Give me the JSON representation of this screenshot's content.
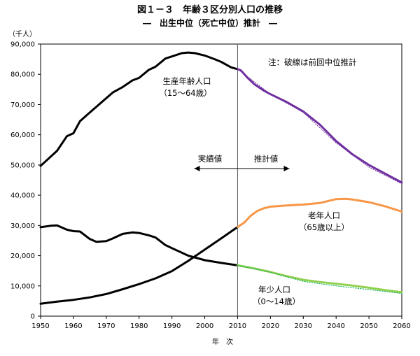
{
  "chart_data": {
    "type": "line",
    "title": "図１－３　年齢３区分別人口の推移",
    "subtitle": "―　出生中位（死亡中位）推計　―",
    "ylabel": "（千人）",
    "xlabel": "年　次",
    "xlim": [
      1950,
      2060
    ],
    "ylim": [
      0,
      90000
    ],
    "x_ticks": [
      "1950",
      "1960",
      "1970",
      "1980",
      "1990",
      "2000",
      "2010",
      "2020",
      "2030",
      "2040",
      "2050",
      "2060"
    ],
    "y_ticks": [
      "0",
      "10,000",
      "20,000",
      "30,000",
      "40,000",
      "50,000",
      "60,000",
      "70,000",
      "80,000",
      "90,000"
    ],
    "note": "注：破線は前回中位推計",
    "divider_year": 2010,
    "arrow_left_label": "実績値",
    "arrow_right_label": "推計値",
    "grid": false,
    "series": [
      {
        "name": "生産年齢人口（15～64歳）",
        "label_lines": [
          "生産年齢人口",
          "（15～64歳）"
        ],
        "color": "#000000",
        "points": [
          [
            1950,
            49700
          ],
          [
            1955,
            54700
          ],
          [
            1958,
            59500
          ],
          [
            1960,
            60500
          ],
          [
            1962,
            64500
          ],
          [
            1965,
            67400
          ],
          [
            1970,
            72100
          ],
          [
            1972,
            74000
          ],
          [
            1975,
            75800
          ],
          [
            1978,
            78000
          ],
          [
            1980,
            78800
          ],
          [
            1983,
            81500
          ],
          [
            1985,
            82500
          ],
          [
            1988,
            85200
          ],
          [
            1990,
            85900
          ],
          [
            1993,
            87000
          ],
          [
            1995,
            87200
          ],
          [
            1997,
            87000
          ],
          [
            2000,
            86200
          ],
          [
            2003,
            85000
          ],
          [
            2005,
            84100
          ],
          [
            2008,
            82300
          ],
          [
            2010,
            81700
          ]
        ]
      },
      {
        "name": "生産年齢人口 推計",
        "color": "#7030a0",
        "points": [
          [
            2010,
            81700
          ],
          [
            2011,
            81300
          ],
          [
            2013,
            78900
          ],
          [
            2015,
            76800
          ],
          [
            2018,
            74600
          ],
          [
            2020,
            73400
          ],
          [
            2025,
            70800
          ],
          [
            2030,
            67700
          ],
          [
            2035,
            63400
          ],
          [
            2040,
            57900
          ],
          [
            2045,
            53500
          ],
          [
            2050,
            50000
          ],
          [
            2055,
            47100
          ],
          [
            2060,
            44200
          ]
        ]
      },
      {
        "name": "生産年齢人口 前回中位推計",
        "color": "#7030a0",
        "dashed": true,
        "points": [
          [
            2010,
            81700
          ],
          [
            2020,
            73400
          ],
          [
            2030,
            67400
          ],
          [
            2040,
            57300
          ],
          [
            2050,
            49300
          ],
          [
            2060,
            43800
          ]
        ]
      },
      {
        "name": "老年人口（65歳以上）",
        "label_lines": [
          "老年人口",
          "（65歳以上）"
        ],
        "color": "#000000",
        "points": [
          [
            1950,
            4100
          ],
          [
            1955,
            4800
          ],
          [
            1960,
            5400
          ],
          [
            1965,
            6200
          ],
          [
            1970,
            7300
          ],
          [
            1975,
            8900
          ],
          [
            1980,
            10600
          ],
          [
            1985,
            12500
          ],
          [
            1990,
            14900
          ],
          [
            1995,
            18300
          ],
          [
            2000,
            22000
          ],
          [
            2005,
            25700
          ],
          [
            2010,
            29500
          ]
        ]
      },
      {
        "name": "老年人口 推計",
        "color": "#f79646",
        "points": [
          [
            2010,
            29500
          ],
          [
            2012,
            30900
          ],
          [
            2014,
            33200
          ],
          [
            2016,
            34800
          ],
          [
            2018,
            35700
          ],
          [
            2020,
            36200
          ],
          [
            2025,
            36600
          ],
          [
            2030,
            36900
          ],
          [
            2035,
            37400
          ],
          [
            2040,
            38700
          ],
          [
            2043,
            38800
          ],
          [
            2045,
            38600
          ],
          [
            2050,
            37700
          ],
          [
            2055,
            36300
          ],
          [
            2060,
            34600
          ]
        ]
      },
      {
        "name": "年少人口（0～14歳）",
        "label_lines": [
          "年少人口",
          "（0～14歳）"
        ],
        "color": "#000000",
        "points": [
          [
            1950,
            29400
          ],
          [
            1953,
            29900
          ],
          [
            1955,
            30000
          ],
          [
            1958,
            28600
          ],
          [
            1960,
            28100
          ],
          [
            1962,
            28000
          ],
          [
            1965,
            25500
          ],
          [
            1967,
            24600
          ],
          [
            1970,
            24800
          ],
          [
            1972,
            25700
          ],
          [
            1975,
            27200
          ],
          [
            1978,
            27700
          ],
          [
            1980,
            27500
          ],
          [
            1983,
            26700
          ],
          [
            1985,
            26000
          ],
          [
            1988,
            23500
          ],
          [
            1990,
            22500
          ],
          [
            1995,
            20000
          ],
          [
            2000,
            18500
          ],
          [
            2005,
            17600
          ],
          [
            2010,
            16800
          ]
        ]
      },
      {
        "name": "年少人口 推計",
        "color": "#92d050",
        "points": [
          [
            2010,
            16800
          ],
          [
            2015,
            15800
          ],
          [
            2020,
            14600
          ],
          [
            2025,
            13200
          ],
          [
            2030,
            12000
          ],
          [
            2035,
            11300
          ],
          [
            2040,
            10700
          ],
          [
            2045,
            10100
          ],
          [
            2050,
            9400
          ],
          [
            2055,
            8600
          ],
          [
            2060,
            7900
          ]
        ]
      },
      {
        "name": "年少人口 前回中位推計",
        "color": "#00b050",
        "dashed": true,
        "points": [
          [
            2010,
            16800
          ],
          [
            2020,
            14500
          ],
          [
            2030,
            11500
          ],
          [
            2040,
            10000
          ],
          [
            2050,
            8800
          ],
          [
            2060,
            7500
          ]
        ]
      }
    ]
  }
}
